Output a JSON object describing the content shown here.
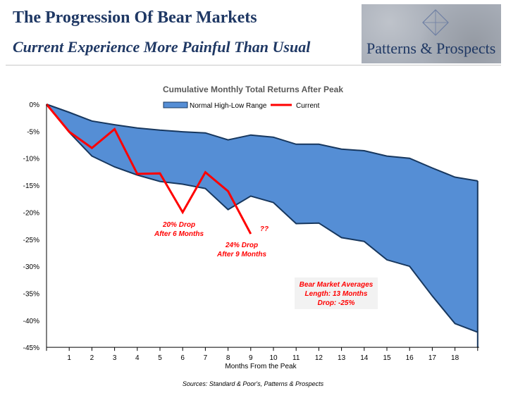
{
  "header": {
    "title": "The Progression Of Bear Markets",
    "subtitle": "Current Experience More Painful Than Usual",
    "logo_text": "Patterns & Prospects",
    "logo_icon": "diamond-icon"
  },
  "source": "Sources: Standard & Poor's, Patterns & Prospects",
  "colors": {
    "band_fill": "#558ed5",
    "band_edge": "#17375e",
    "current_line": "#ff0000",
    "annotation_text": "#ff0000",
    "header_text": "#1f3864"
  },
  "chart_data": {
    "type": "area",
    "title": "Cumulative Monthly Total Returns After Peak",
    "xlabel": "Months From the Peak",
    "ylabel": "",
    "ylim": [
      -45,
      0
    ],
    "xlim": [
      0,
      19
    ],
    "x_tick_labels": [
      "1",
      "2",
      "3",
      "4",
      "5",
      "6",
      "7",
      "8",
      "9",
      "10",
      "11",
      "12",
      "13",
      "14",
      "15",
      "16",
      "17",
      "18"
    ],
    "y_tick_labels": [
      "0%",
      "-5%",
      "-10%",
      "-15%",
      "-20%",
      "-25%",
      "-30%",
      "-35%",
      "-40%",
      "-45%"
    ],
    "legend_placement": "top-center",
    "grid": false,
    "series": [
      {
        "name": "Normal High-Low Range",
        "kind": "band",
        "x": [
          0,
          1,
          2,
          3,
          4,
          5,
          6,
          7,
          8,
          9,
          10,
          11,
          12,
          13,
          14,
          15,
          16,
          17,
          18,
          19
        ],
        "upper": [
          0,
          -1.5,
          -3.1,
          -3.8,
          -4.4,
          -4.8,
          -5.1,
          -5.3,
          -6.6,
          -5.7,
          -6.1,
          -7.4,
          -7.4,
          -8.3,
          -8.6,
          -9.6,
          -10,
          -11.8,
          -13.5,
          -14.2
        ],
        "lower": [
          0,
          -5.2,
          -9.6,
          -11.6,
          -13.1,
          -14.3,
          -14.8,
          -15.6,
          -19.5,
          -17,
          -18.2,
          -22.1,
          -22,
          -24.7,
          -25.4,
          -28.8,
          -30,
          -35.5,
          -40.6,
          -42.2
        ]
      },
      {
        "name": "Current",
        "kind": "line",
        "x": [
          0,
          1,
          2,
          3,
          4,
          5,
          6,
          7,
          8,
          9
        ],
        "values": [
          0,
          -5.1,
          -8.1,
          -4.6,
          -12.9,
          -12.8,
          -20,
          -12.6,
          -16.1,
          -24
        ]
      }
    ],
    "annotations": [
      {
        "lines": [
          "20% Drop",
          "After 6 Months"
        ]
      },
      {
        "lines": [
          "24% Drop",
          "After 9 Months"
        ]
      },
      {
        "lines": [
          "??"
        ]
      },
      {
        "lines": [
          "Bear Market Averages",
          "Length: 13 Months",
          "Drop: -25%"
        ]
      }
    ]
  }
}
